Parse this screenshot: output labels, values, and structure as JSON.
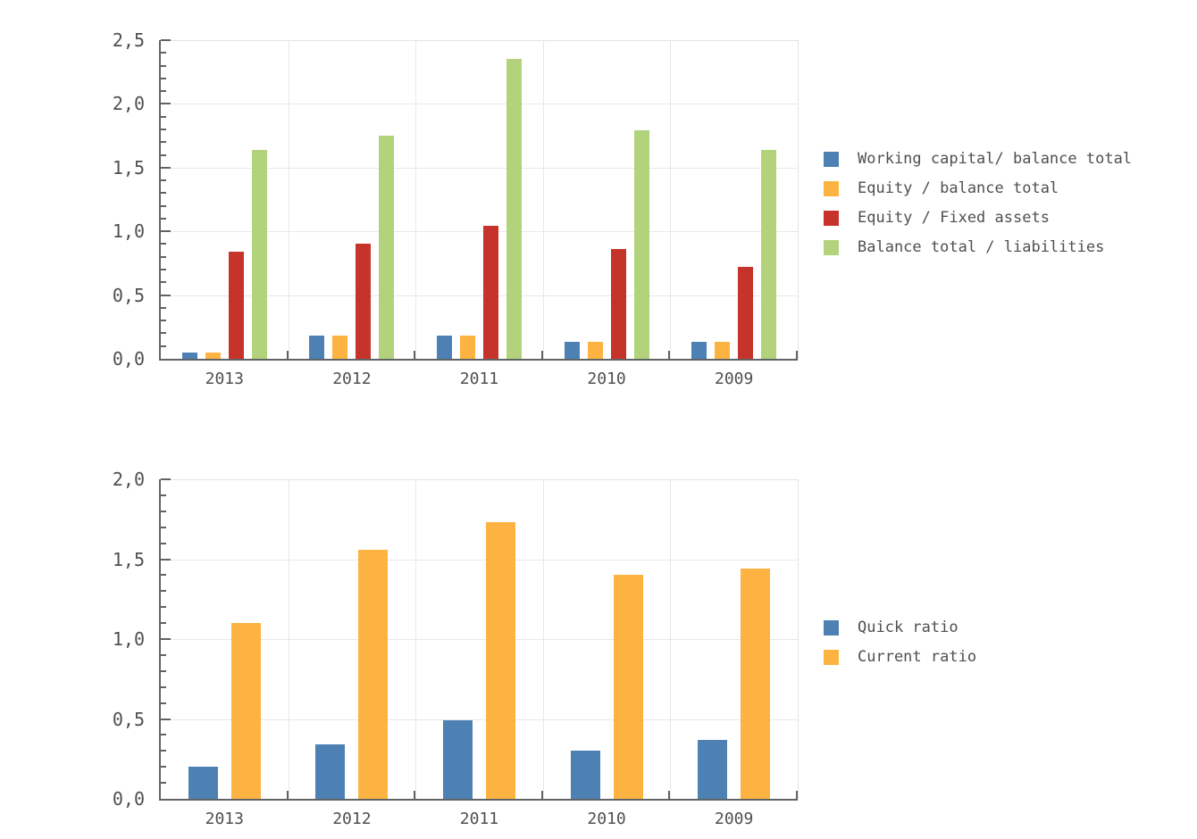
{
  "page": {
    "background": "#ffffff",
    "text_color": "#4f4f4f"
  },
  "chart_data": [
    {
      "type": "bar",
      "title": "",
      "categories": [
        "2013",
        "2012",
        "2011",
        "2010",
        "2009"
      ],
      "series": [
        {
          "name": "Working capital/ balance total",
          "color": "#4d81b4",
          "values": [
            0.05,
            0.18,
            0.18,
            0.13,
            0.13
          ]
        },
        {
          "name": "Equity / balance total",
          "color": "#fcb342",
          "values": [
            0.05,
            0.18,
            0.18,
            0.13,
            0.13
          ]
        },
        {
          "name": "Equity / Fixed assets",
          "color": "#c5332a",
          "values": [
            0.84,
            0.9,
            1.04,
            0.86,
            0.72
          ]
        },
        {
          "name": "Balance total / liabilities",
          "color": "#b2d37b",
          "values": [
            1.64,
            1.75,
            2.35,
            1.79,
            1.64
          ]
        }
      ],
      "xlabel": "",
      "ylabel": "",
      "ylim": [
        0,
        2.5
      ],
      "major_step": 0.5,
      "minor_step": 0.1,
      "ytick_labels": [
        "0,0",
        "0,5",
        "1,0",
        "1,5",
        "2,0",
        "2,5"
      ],
      "grid": true,
      "legend_position": "right",
      "axis_color": "#606366",
      "grid_color": "#e8e8e8",
      "border_color": "#e3e3e3"
    },
    {
      "type": "bar",
      "title": "",
      "categories": [
        "2013",
        "2012",
        "2011",
        "2010",
        "2009"
      ],
      "series": [
        {
          "name": "Quick ratio",
          "color": "#4d81b4",
          "values": [
            0.2,
            0.34,
            0.49,
            0.3,
            0.37
          ]
        },
        {
          "name": "Current ratio",
          "color": "#fcb342",
          "values": [
            1.1,
            1.56,
            1.73,
            1.4,
            1.44
          ]
        }
      ],
      "xlabel": "",
      "ylabel": "",
      "ylim": [
        0,
        2.0
      ],
      "major_step": 0.5,
      "minor_step": 0.1,
      "ytick_labels": [
        "0,0",
        "0,5",
        "1,0",
        "1,5",
        "2,0"
      ],
      "grid": true,
      "legend_position": "right",
      "axis_color": "#606366",
      "grid_color": "#e8e8e8",
      "border_color": "#e3e3e3"
    }
  ]
}
